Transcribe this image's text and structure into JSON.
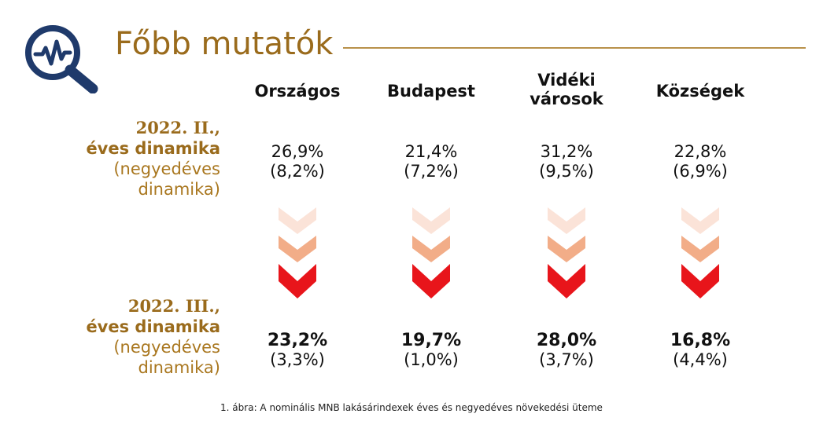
{
  "header": {
    "title": "Főbb mutatók",
    "logo_icon": "magnifier-pulse-icon"
  },
  "columns": [
    "Országos",
    "Budapest",
    "Vidéki városok",
    "Községek"
  ],
  "column_lines": [
    [
      "Országos"
    ],
    [
      "Budapest"
    ],
    [
      "Vidéki",
      "városok"
    ],
    [
      "Községek"
    ]
  ],
  "rows": [
    {
      "label_line1": "2022. II.,",
      "label_line2": "éves dinamika",
      "label_line3": "(negyedéves",
      "label_line4": "dinamika)",
      "annual": [
        "26,9%",
        "21,4%",
        "31,2%",
        "22,8%"
      ],
      "quarterly": [
        "(8,2%)",
        "(7,2%)",
        "(9,5%)",
        "(6,9%)"
      ]
    },
    {
      "label_line1": "2022. III.,",
      "label_line2": "éves dinamika",
      "label_line3": "(negyedéves",
      "label_line4": "dinamika)",
      "annual": [
        "23,2%",
        "19,7%",
        "28,0%",
        "16,8%"
      ],
      "quarterly": [
        "(3,3%)",
        "(1,0%)",
        "(3,7%)",
        "(4,4%)"
      ]
    }
  ],
  "arrows": {
    "icon": "chevron-down-icon",
    "colors": [
      "#fbe3d8",
      "#f2ad88",
      "#e8151b"
    ]
  },
  "colors": {
    "accent": "#9a6b1c",
    "logo": "#1f3a6b"
  },
  "caption": "1. ábra: A nominális MNB lakásárindexek éves és negyedéves növekedési üteme"
}
